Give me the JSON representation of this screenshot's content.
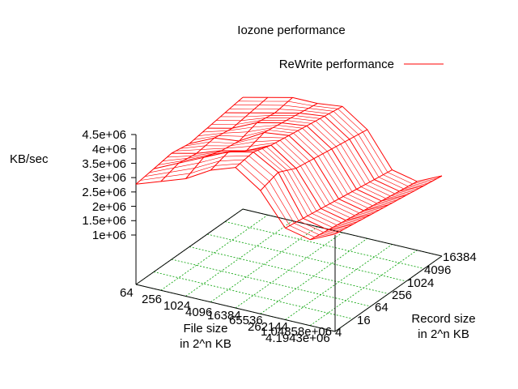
{
  "chart_data": {
    "type": "surface3d",
    "title": "Iozone performance",
    "legend": {
      "label": "ReWrite performance",
      "position": "top-right",
      "color": "#ff0000"
    },
    "zlabel": "KB/sec",
    "xlabel_line1": "File size",
    "xlabel_line2": "in 2^n KB",
    "ylabel_line1": "Record size",
    "ylabel_line2": "in 2^n KB",
    "x_ticks": [
      "64",
      "256",
      "1024",
      "4096",
      "16384",
      "65536",
      "262144",
      "1.04858e+06",
      "4.1943e+06"
    ],
    "y_ticks": [
      "4",
      "16",
      "64",
      "256",
      "1024",
      "4096",
      "16384"
    ],
    "z_ticks": [
      "1e+06",
      "1.5e+06",
      "2e+06",
      "2.5e+06",
      "3e+06",
      "3.5e+06",
      "4e+06",
      "4.5e+06"
    ],
    "z_range": [
      1000000,
      4500000
    ],
    "grid": true,
    "grid_color": "#00a000",
    "surface_color": "#ff0000",
    "surface_description_values_kbps": [
      [
        2800000,
        3100000,
        3400000,
        3900000,
        4200000,
        3600000,
        2500000,
        2300000,
        2700000
      ],
      [
        2900000,
        3300000,
        3700000,
        4100000,
        4300000,
        3800000,
        2400000,
        2200000,
        2600000
      ],
      [
        3000000,
        3200000,
        3500000,
        3700000,
        4100000,
        3500000,
        2300000,
        2100000,
        2500000
      ],
      [
        2900000,
        3300000,
        3400000,
        3900000,
        4000000,
        3400000,
        2200000,
        2000000,
        2400000
      ],
      [
        3000000,
        3200000,
        3600000,
        3800000,
        3900000,
        3300000,
        2100000,
        1900000,
        2300000
      ],
      [
        3100000,
        3300000,
        3500000,
        3700000,
        3800000,
        3200000,
        2000000,
        1800000,
        2200000
      ],
      [
        3200000,
        3400000,
        3600000,
        3600000,
        3700000,
        3100000,
        1900000,
        1700000,
        2100000
      ]
    ]
  }
}
